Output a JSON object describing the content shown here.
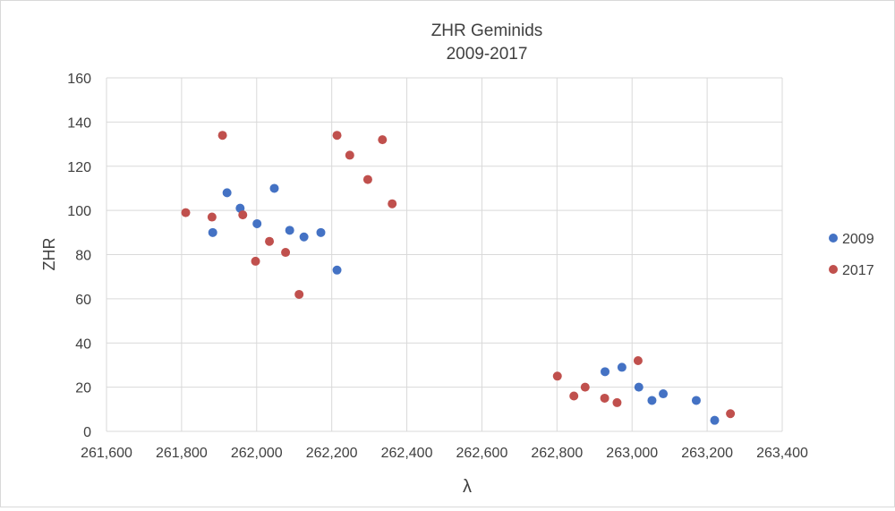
{
  "chart_data": {
    "type": "scatter",
    "title": [
      "ZHR  Geminids",
      "2009-2017"
    ],
    "xlabel": "λ",
    "ylabel": "ZHR",
    "xlim": [
      261600,
      263400
    ],
    "ylim": [
      0,
      160
    ],
    "xticks": [
      261600,
      261800,
      262000,
      262200,
      262400,
      262600,
      262800,
      263000,
      263200,
      263400
    ],
    "xtick_labels": [
      "261,600",
      "261,800",
      "262,000",
      "262,200",
      "262,400",
      "262,600",
      "262,800",
      "263,000",
      "263,200",
      "263,400"
    ],
    "yticks": [
      0,
      20,
      40,
      60,
      80,
      100,
      120,
      140,
      160
    ],
    "ytick_labels": [
      "0",
      "20",
      "40",
      "60",
      "80",
      "100",
      "120",
      "140",
      "160"
    ],
    "grid": true,
    "legend": "right",
    "series": [
      {
        "name": "2009",
        "color": "#4472c4",
        "points": [
          [
            261883,
            90
          ],
          [
            261921,
            108
          ],
          [
            261956,
            101
          ],
          [
            262001,
            94
          ],
          [
            262047,
            110
          ],
          [
            262088,
            91
          ],
          [
            262126,
            88
          ],
          [
            262171,
            90
          ],
          [
            262214,
            73
          ],
          [
            262928,
            27
          ],
          [
            262973,
            29
          ],
          [
            263018,
            20
          ],
          [
            263053,
            14
          ],
          [
            263083,
            17
          ],
          [
            263171,
            14
          ],
          [
            263220,
            5
          ]
        ]
      },
      {
        "name": "2017",
        "color": "#c0504d",
        "points": [
          [
            261811,
            99
          ],
          [
            261881,
            97
          ],
          [
            261909,
            134
          ],
          [
            261963,
            98
          ],
          [
            261997,
            77
          ],
          [
            262034,
            86
          ],
          [
            262077,
            81
          ],
          [
            262113,
            62
          ],
          [
            262214,
            134
          ],
          [
            262248,
            125
          ],
          [
            262296,
            114
          ],
          [
            262335,
            132
          ],
          [
            262361,
            103
          ],
          [
            262801,
            25
          ],
          [
            262845,
            16
          ],
          [
            262875,
            20
          ],
          [
            262927,
            15
          ],
          [
            262960,
            13
          ],
          [
            263016,
            32
          ],
          [
            263262,
            8
          ]
        ]
      }
    ]
  }
}
